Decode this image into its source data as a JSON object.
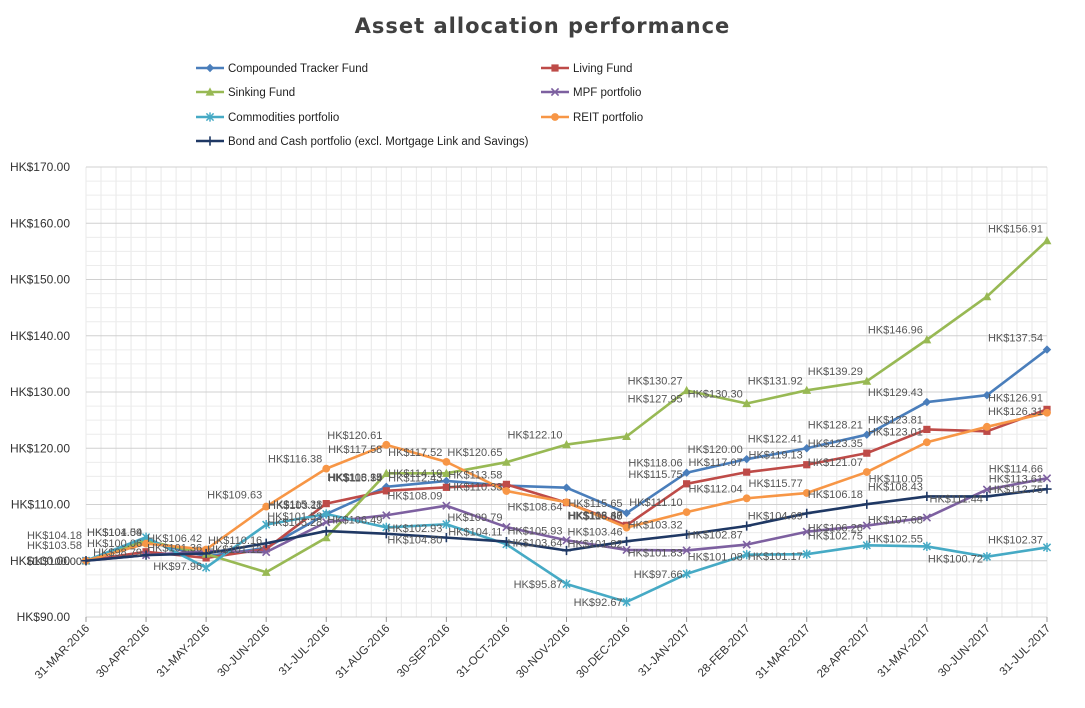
{
  "chart_data": {
    "type": "line",
    "title": "Asset allocation performance",
    "xlabel": "",
    "ylabel": "",
    "ylim": [
      90,
      170
    ],
    "yticks": [
      90,
      100,
      110,
      120,
      130,
      140,
      150,
      160,
      170
    ],
    "y_tick_labels": [
      "HK$90.00",
      "HK$100.00",
      "HK$110.00",
      "HK$120.00",
      "HK$130.00",
      "HK$140.00",
      "HK$150.00",
      "HK$160.00",
      "HK$170.00"
    ],
    "grid": true,
    "legend_position": "top",
    "categories": [
      "31-MAR-2016",
      "30-APR-2016",
      "31-MAY-2016",
      "30-JUN-2016",
      "31-JUL-2016",
      "31-AUG-2016",
      "30-SEP-2016",
      "31-OCT-2016",
      "30-NOV-2016",
      "30-DEC-2016",
      "31-JAN-2017",
      "28-FEB-2017",
      "31-MAR-2017",
      "28-APR-2017",
      "31-MAY-2017",
      "30-JUN-2017",
      "31-JUL-2017"
    ],
    "label_prefix": "HK$",
    "series": [
      {
        "name": "Compounded Tracker Fund",
        "color": "#4a7ebb",
        "marker": "diamond",
        "values": [
          100.0,
          103.5,
          100.8,
          102.3,
          108.29,
          113.15,
          114.19,
          113.35,
          112.99,
          108.47,
          115.65,
          118.06,
          120.0,
          122.41,
          128.21,
          129.43,
          137.54
        ]
      },
      {
        "name": "Living Fund",
        "color": "#be4b48",
        "marker": "square",
        "values": [
          100.0,
          101.6,
          100.5,
          102.1,
          110.16,
          112.43,
          113.05,
          113.58,
          110.33,
          106.3,
          113.68,
          115.75,
          117.07,
          119.13,
          123.35,
          123.01,
          126.91
        ]
      },
      {
        "name": "Sinking Fund",
        "color": "#98b954",
        "marker": "triangle",
        "values": [
          100.0,
          103.6,
          101.2,
          97.96,
          104.1,
          115.54,
          115.54,
          117.52,
          120.65,
          122.1,
          130.27,
          127.95,
          130.3,
          131.92,
          139.29,
          146.96,
          156.91
        ]
      },
      {
        "name": "MPF portfolio",
        "color": "#7d60a0",
        "marker": "x",
        "values": [
          100.0,
          101.0,
          101.7,
          101.53,
          106.85,
          108.09,
          109.79,
          105.99,
          103.64,
          101.92,
          101.83,
          102.87,
          105.16,
          106.26,
          107.68,
          112.66,
          114.66
        ]
      },
      {
        "name": "Commodities portfolio",
        "color": "#46aac5",
        "marker": "star",
        "values": [
          100.0,
          104.18,
          98.79,
          106.42,
          108.31,
          105.93,
          106.49,
          102.93,
          95.87,
          92.67,
          97.66,
          101.08,
          101.17,
          102.75,
          102.55,
          100.72,
          102.37
        ]
      },
      {
        "name": "REIT portfolio",
        "color": "#f79646",
        "marker": "circle",
        "values": [
          100.0,
          103.05,
          102.0,
          109.63,
          116.38,
          120.61,
          117.58,
          112.4,
          110.4,
          105.9,
          108.64,
          111.1,
          112.04,
          115.77,
          121.07,
          123.81,
          126.31
        ]
      },
      {
        "name": "Bond and Cash portfolio (excl. Mortgage Link and Savings)",
        "color": "#1f3864",
        "marker": "plus",
        "values": [
          100.0,
          101.0,
          101.3,
          103.11,
          105.28,
          104.8,
          104.11,
          103.41,
          101.82,
          103.46,
          104.69,
          106.18,
          108.43,
          110.05,
          111.44,
          111.44,
          112.75
        ]
      }
    ],
    "data_labels": [
      {
        "text": "HK$104.18",
        "s": 0,
        "i": 0,
        "dy": -22
      },
      {
        "text": "HK$103.58",
        "s": 0,
        "i": 0,
        "dy": -12
      },
      {
        "text": "HK$100.00",
        "s": 0,
        "i": 0,
        "dy": 4
      },
      {
        "text": "HK$100.00",
        "s": 1,
        "i": 0,
        "dy": 4
      },
      {
        "text": "HK$104.54",
        "s": 0,
        "i": 1,
        "dy": -5
      },
      {
        "text": "HK$100.06",
        "s": 0,
        "i": 1,
        "dy": 6
      },
      {
        "text": "HK$98.79",
        "s": 0,
        "i": 1,
        "dy": 15
      },
      {
        "text": "HK$101.09",
        "s": 0,
        "i": 1,
        "dy": -5
      },
      {
        "text": "HK$106.42",
        "s": 2,
        "i": 2,
        "dy": -12
      },
      {
        "text": "HK$101.36",
        "s": 0,
        "i": 2,
        "dy": -5
      },
      {
        "text": "HK$97.96",
        "s": 2,
        "i": 2,
        "dy": 16
      },
      {
        "text": "HK$101.12",
        "s": 0,
        "i": 3,
        "dy": 5
      },
      {
        "text": "HK$109.63",
        "s": 5,
        "i": 3,
        "dy": -8
      },
      {
        "text": "HK$110.16",
        "s": 0,
        "i": 3,
        "dy": -4
      },
      {
        "text": "HK$116.38",
        "s": 5,
        "i": 4,
        "dy": -6
      },
      {
        "text": "HK$115.28",
        "s": 0,
        "i": 4,
        "dy": -6
      },
      {
        "text": "HK$113.15",
        "s": 0,
        "i": 5,
        "dy": -6
      },
      {
        "text": "HK$108.29",
        "s": 0,
        "i": 5,
        "dy": -6
      },
      {
        "text": "HK$103.11",
        "s": 0,
        "i": 4,
        "dy": -5
      },
      {
        "text": "HK$101.53",
        "s": 0,
        "i": 4,
        "dy": 6
      },
      {
        "text": "HK$105.28",
        "s": 6,
        "i": 4,
        "dy": -5
      },
      {
        "text": "HK$120.61",
        "s": 5,
        "i": 5,
        "dy": -6
      },
      {
        "text": "HK$117.58",
        "s": 5,
        "i": 5,
        "dy": 8
      },
      {
        "text": "HK$115.54",
        "s": 2,
        "i": 5,
        "dy": 8
      },
      {
        "text": "HK$114.19",
        "s": 0,
        "i": 6,
        "dy": -4
      },
      {
        "text": "HK$108.09",
        "s": 3,
        "i": 6,
        "dy": -6
      },
      {
        "text": "HK$106.49",
        "s": 4,
        "i": 5,
        "dy": -4
      },
      {
        "text": "HK$104.80",
        "s": 6,
        "i": 6,
        "dy": 6
      },
      {
        "text": "HK$117.52",
        "s": 5,
        "i": 6,
        "dy": -6
      },
      {
        "text": "HK$112.43",
        "s": 1,
        "i": 6,
        "dy": -6
      },
      {
        "text": "HK$109.79",
        "s": 3,
        "i": 7,
        "dy": -6
      },
      {
        "text": "HK$102.93",
        "s": 4,
        "i": 6,
        "dy": 8
      },
      {
        "text": "HK$104.11",
        "s": 6,
        "i": 7,
        "dy": -6
      },
      {
        "text": "HK$120.65",
        "s": 2,
        "i": 7,
        "dy": -6
      },
      {
        "text": "HK$113.58",
        "s": 1,
        "i": 7,
        "dy": -6
      },
      {
        "text": "HK$110.33",
        "s": 1,
        "i": 7,
        "dy": 6
      },
      {
        "text": "HK$105.93",
        "s": 3,
        "i": 8,
        "dy": -6
      },
      {
        "text": "HK$103.64",
        "s": 3,
        "i": 8,
        "dy": 6
      },
      {
        "text": "HK$95.87",
        "s": 4,
        "i": 8,
        "dy": 4
      },
      {
        "text": "HK$122.10",
        "s": 2,
        "i": 8,
        "dy": -6
      },
      {
        "text": "HK$108.64",
        "s": 5,
        "i": 8,
        "dy": 8
      },
      {
        "text": "HK$106.30",
        "s": 1,
        "i": 9,
        "dy": -6
      },
      {
        "text": "HK$103.46",
        "s": 6,
        "i": 9,
        "dy": -6
      },
      {
        "text": "HK$101.82",
        "s": 6,
        "i": 9,
        "dy": 6
      },
      {
        "text": "HK$92.67",
        "s": 4,
        "i": 9,
        "dy": 4
      },
      {
        "text": "HK$115.65",
        "s": 0,
        "i": 9,
        "dy": -6
      },
      {
        "text": "HK$113.68",
        "s": 1,
        "i": 9,
        "dy": -6
      },
      {
        "text": "HK$108.47",
        "s": 0,
        "i": 9,
        "dy": 6
      },
      {
        "text": "HK$130.27",
        "s": 2,
        "i": 10,
        "dy": -6
      },
      {
        "text": "HK$127.95",
        "s": 2,
        "i": 10,
        "dy": 12
      },
      {
        "text": "HK$118.06",
        "s": 0,
        "i": 10,
        "dy": -6
      },
      {
        "text": "HK$115.75",
        "s": 1,
        "i": 10,
        "dy": -6
      },
      {
        "text": "HK$111.10",
        "s": 5,
        "i": 10,
        "dy": -6
      },
      {
        "text": "HK$103.32",
        "s": 6,
        "i": 10,
        "dy": -6
      },
      {
        "text": "HK$101.83",
        "s": 3,
        "i": 10,
        "dy": 6
      },
      {
        "text": "HK$97.66",
        "s": 4,
        "i": 10,
        "dy": 4
      },
      {
        "text": "HK$130.30",
        "s": 2,
        "i": 11,
        "dy": -6
      },
      {
        "text": "HK$120.00",
        "s": 0,
        "i": 11,
        "dy": -6
      },
      {
        "text": "HK$117.07",
        "s": 1,
        "i": 11,
        "dy": -6
      },
      {
        "text": "HK$112.04",
        "s": 5,
        "i": 11,
        "dy": -6
      },
      {
        "text": "HK$102.87",
        "s": 3,
        "i": 11,
        "dy": -6
      },
      {
        "text": "HK$101.08",
        "s": 4,
        "i": 11,
        "dy": 6
      },
      {
        "text": "HK$131.92",
        "s": 2,
        "i": 12,
        "dy": -6
      },
      {
        "text": "HK$122.41",
        "s": 0,
        "i": 12,
        "dy": -6
      },
      {
        "text": "HK$119.13",
        "s": 1,
        "i": 12,
        "dy": -6
      },
      {
        "text": "HK$115.77",
        "s": 5,
        "i": 12,
        "dy": -6
      },
      {
        "text": "HK$104.69",
        "s": 6,
        "i": 12,
        "dy": 6
      },
      {
        "text": "HK$101.17",
        "s": 4,
        "i": 12,
        "dy": 6
      },
      {
        "text": "HK$139.29",
        "s": 2,
        "i": 13,
        "dy": -6
      },
      {
        "text": "HK$128.21",
        "s": 0,
        "i": 13,
        "dy": -6
      },
      {
        "text": "HK$123.35",
        "s": 1,
        "i": 13,
        "dy": -6
      },
      {
        "text": "HK$121.07",
        "s": 5,
        "i": 13,
        "dy": -6
      },
      {
        "text": "HK$106.18",
        "s": 6,
        "i": 13,
        "dy": -6
      },
      {
        "text": "HK$106.26",
        "s": 3,
        "i": 13,
        "dy": 6
      },
      {
        "text": "HK$102.75",
        "s": 4,
        "i": 13,
        "dy": -6
      },
      {
        "text": "HK$146.96",
        "s": 2,
        "i": 14,
        "dy": -6
      },
      {
        "text": "HK$129.43",
        "s": 0,
        "i": 14,
        "dy": -6
      },
      {
        "text": "HK$123.81",
        "s": 1,
        "i": 14,
        "dy": -6
      },
      {
        "text": "HK$123.01",
        "s": 1,
        "i": 14,
        "dy": 6
      },
      {
        "text": "HK$108.43",
        "s": 6,
        "i": 14,
        "dy": -6
      },
      {
        "text": "HK$110.05",
        "s": 6,
        "i": 14,
        "dy": -14
      },
      {
        "text": "HK$107.68",
        "s": 3,
        "i": 14,
        "dy": 6
      },
      {
        "text": "HK$102.55",
        "s": 4,
        "i": 14,
        "dy": -4
      },
      {
        "text": "HK$156.91",
        "s": 2,
        "i": 16,
        "dy": -8
      },
      {
        "text": "HK$137.54",
        "s": 0,
        "i": 16,
        "dy": -8
      },
      {
        "text": "HK$126.91",
        "s": 1,
        "i": 16,
        "dy": -8
      },
      {
        "text": "HK$126.31",
        "s": 5,
        "i": 16,
        "dy": 2
      },
      {
        "text": "HK$111.44",
        "s": 6,
        "i": 15,
        "dy": 6
      },
      {
        "text": "HK$100.72",
        "s": 4,
        "i": 15,
        "dy": 6
      },
      {
        "text": "HK$102.37",
        "s": 4,
        "i": 16,
        "dy": -4
      },
      {
        "text": "HK$114.66",
        "s": 3,
        "i": 16,
        "dy": -6
      },
      {
        "text": "HK$113.61",
        "s": 3,
        "i": 16,
        "dy": 4
      },
      {
        "text": "HK$112.75",
        "s": 6,
        "i": 16,
        "dy": 4
      }
    ]
  }
}
